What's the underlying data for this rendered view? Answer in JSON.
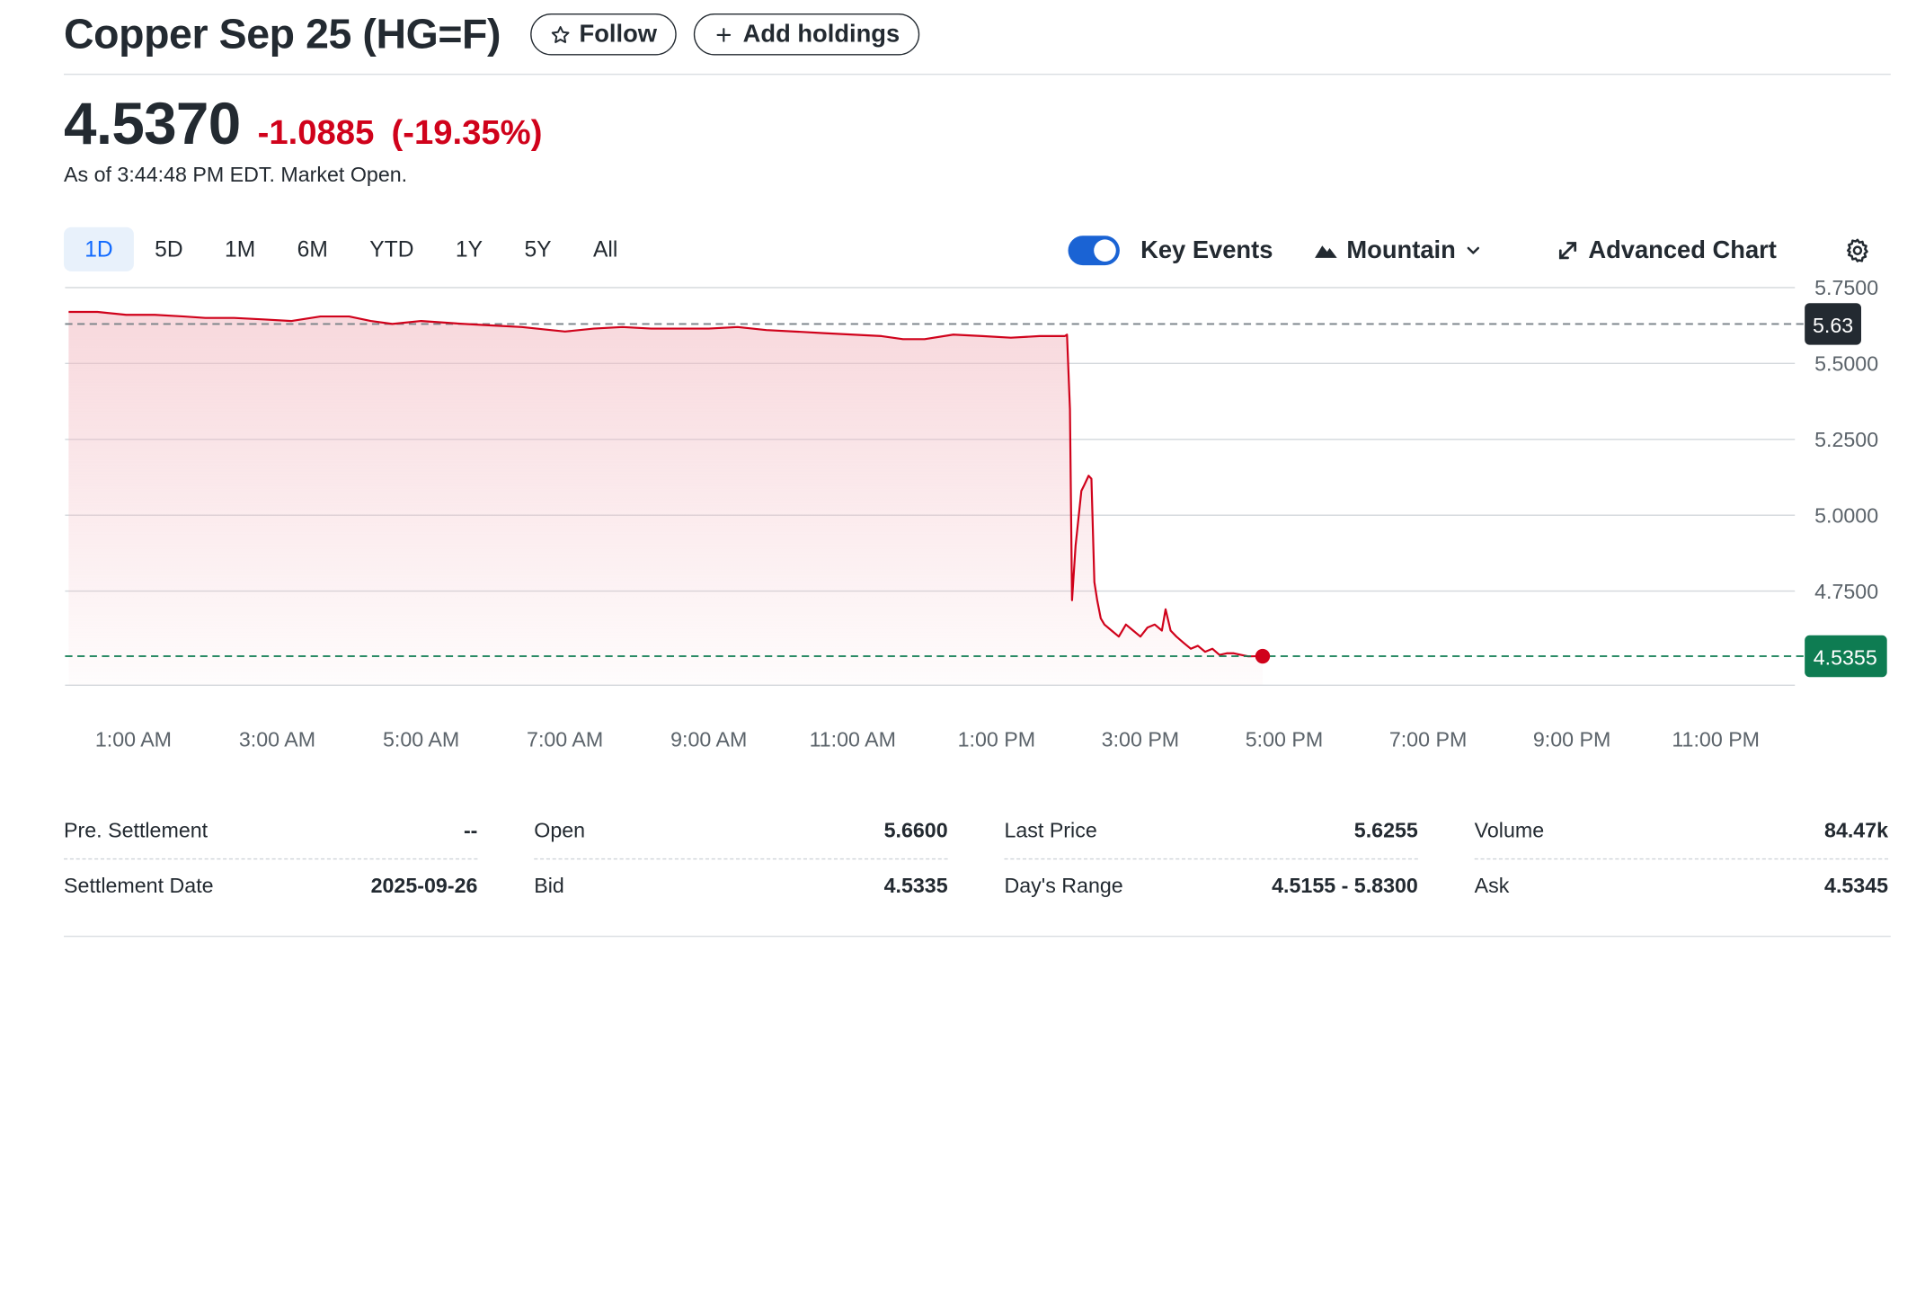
{
  "header": {
    "title": "Copper Sep 25 (HG=F)",
    "follow_label": "Follow",
    "add_holdings_label": "Add holdings"
  },
  "quote": {
    "price": "4.5370",
    "change": "-1.0885",
    "change_pct": "(-19.35%)",
    "as_of": "As of 3:44:48 PM EDT. Market Open."
  },
  "toolbar": {
    "ranges": [
      "1D",
      "5D",
      "1M",
      "6M",
      "YTD",
      "1Y",
      "5Y",
      "All"
    ],
    "active_range": "1D",
    "key_events_label": "Key Events",
    "key_events_on": true,
    "chart_type_label": "Mountain",
    "advanced_chart_label": "Advanced Chart"
  },
  "chart_data": {
    "type": "area",
    "ylim": [
      4.44,
      5.775
    ],
    "y_ticks": [
      "5.7500",
      "5.5000",
      "5.2500",
      "5.0000",
      "4.7500"
    ],
    "x_tick_labels": [
      "1:00 AM",
      "3:00 AM",
      "5:00 AM",
      "7:00 AM",
      "9:00 AM",
      "11:00 AM",
      "1:00 PM",
      "3:00 PM",
      "5:00 PM",
      "7:00 PM",
      "9:00 PM",
      "11:00 PM"
    ],
    "x_ticks_hours": [
      1,
      3,
      5,
      7,
      9,
      11,
      13,
      15,
      17,
      19,
      21,
      23
    ],
    "x_range_hours": [
      0.05,
      24.1
    ],
    "prev_close": 5.63,
    "prev_close_label": "5.63",
    "last_price_label": "4.5355",
    "last_price": 4.5355,
    "series": [
      {
        "values": [
          [
            0.1,
            5.67
          ],
          [
            0.5,
            5.67
          ],
          [
            0.9,
            5.66
          ],
          [
            1.3,
            5.66
          ],
          [
            1.7,
            5.655
          ],
          [
            2.0,
            5.65
          ],
          [
            2.4,
            5.65
          ],
          [
            2.8,
            5.645
          ],
          [
            3.2,
            5.64
          ],
          [
            3.6,
            5.655
          ],
          [
            4.0,
            5.655
          ],
          [
            4.3,
            5.64
          ],
          [
            4.6,
            5.63
          ],
          [
            5.0,
            5.64
          ],
          [
            5.3,
            5.635
          ],
          [
            5.6,
            5.63
          ],
          [
            6.0,
            5.625
          ],
          [
            6.4,
            5.62
          ],
          [
            6.8,
            5.61
          ],
          [
            7.0,
            5.605
          ],
          [
            7.4,
            5.615
          ],
          [
            7.8,
            5.62
          ],
          [
            8.2,
            5.615
          ],
          [
            8.6,
            5.615
          ],
          [
            9.0,
            5.615
          ],
          [
            9.4,
            5.62
          ],
          [
            9.8,
            5.61
          ],
          [
            10.2,
            5.605
          ],
          [
            10.6,
            5.6
          ],
          [
            11.0,
            5.595
          ],
          [
            11.4,
            5.59
          ],
          [
            11.7,
            5.58
          ],
          [
            12.0,
            5.58
          ],
          [
            12.4,
            5.595
          ],
          [
            12.8,
            5.59
          ],
          [
            13.2,
            5.585
          ],
          [
            13.6,
            5.59
          ],
          [
            13.95,
            5.59
          ],
          [
            13.98,
            5.595
          ],
          [
            14.02,
            5.35
          ],
          [
            14.05,
            4.72
          ],
          [
            14.1,
            4.9
          ],
          [
            14.18,
            5.08
          ],
          [
            14.22,
            5.1
          ],
          [
            14.28,
            5.13
          ],
          [
            14.32,
            5.12
          ],
          [
            14.36,
            4.78
          ],
          [
            14.4,
            4.72
          ],
          [
            14.45,
            4.66
          ],
          [
            14.5,
            4.64
          ],
          [
            14.6,
            4.62
          ],
          [
            14.7,
            4.6
          ],
          [
            14.8,
            4.64
          ],
          [
            14.9,
            4.62
          ],
          [
            15.0,
            4.6
          ],
          [
            15.1,
            4.63
          ],
          [
            15.2,
            4.64
          ],
          [
            15.3,
            4.62
          ],
          [
            15.35,
            4.69
          ],
          [
            15.42,
            4.62
          ],
          [
            15.5,
            4.6
          ],
          [
            15.6,
            4.58
          ],
          [
            15.7,
            4.56
          ],
          [
            15.8,
            4.57
          ],
          [
            15.9,
            4.55
          ],
          [
            16.0,
            4.56
          ],
          [
            16.1,
            4.54
          ],
          [
            16.2,
            4.545
          ],
          [
            16.3,
            4.545
          ],
          [
            16.4,
            4.54
          ],
          [
            16.5,
            4.535
          ],
          [
            16.6,
            4.5355
          ],
          [
            16.7,
            4.5355
          ]
        ]
      }
    ],
    "grid": true,
    "line_color": "#d0021b",
    "fill_color": "#f2b8c0",
    "prev_close_color": "#232a31",
    "last_price_color": "#0e7c52"
  },
  "stats": {
    "row1": [
      {
        "label": "Pre. Settlement",
        "value": "--"
      },
      {
        "label": "Open",
        "value": "5.6600"
      },
      {
        "label": "Last Price",
        "value": "5.6255"
      },
      {
        "label": "Volume",
        "value": "84.47k"
      }
    ],
    "row2": [
      {
        "label": "Settlement Date",
        "value": "2025-09-26"
      },
      {
        "label": "Bid",
        "value": "4.5335"
      },
      {
        "label": "Day's Range",
        "value": "4.5155 - 5.8300"
      },
      {
        "label": "Ask",
        "value": "4.5345"
      }
    ]
  },
  "icons": {
    "follow": "star-outline-icon",
    "add": "plus-icon",
    "mountain": "mountain-icon",
    "dropdown": "chevron-down-icon",
    "advanced": "expand-arrows-icon",
    "settings": "gear-icon"
  }
}
